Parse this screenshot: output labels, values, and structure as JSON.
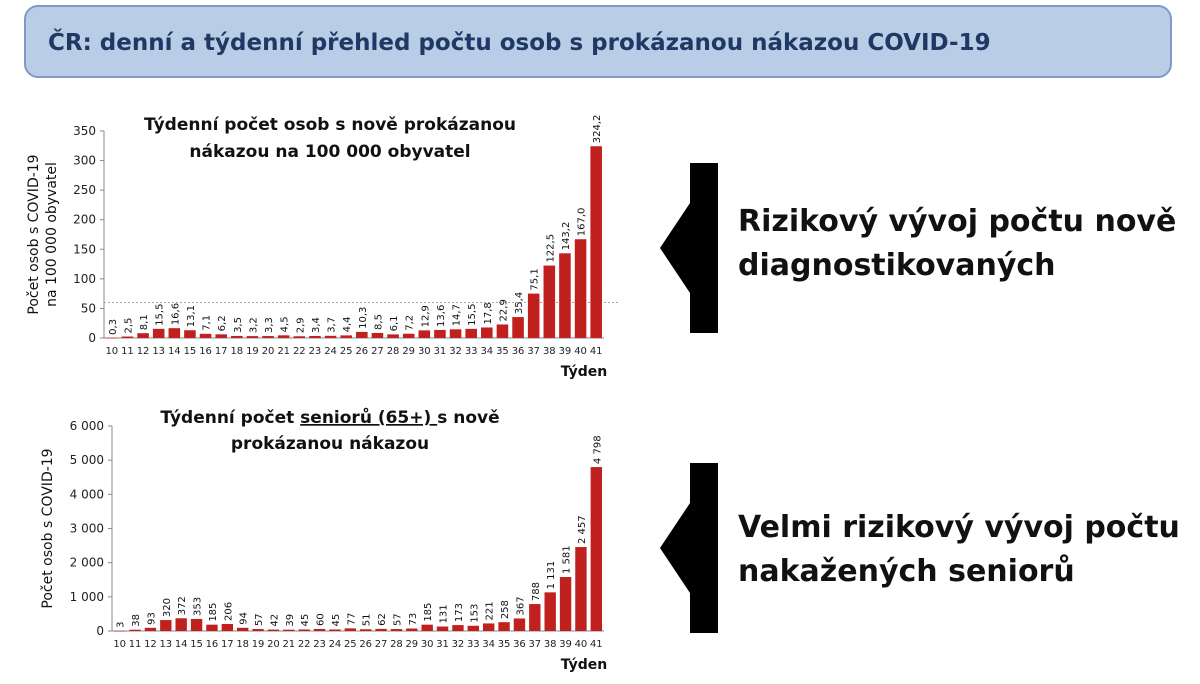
{
  "header": {
    "title": "ČR: denní a týdenní přehled počtu osob s prokázanou nákazou COVID-19"
  },
  "arrows": [
    {
      "text_lines": [
        "Rizikový vývoj počtu nově",
        "diagnostikovaných"
      ],
      "icon": "arrow-left-icon"
    },
    {
      "text_lines": [
        "Velmi rizikový vývoj počtu",
        "nakažených seniorů"
      ],
      "icon": "arrow-left-icon"
    }
  ],
  "colors": {
    "bar": "#c0201e",
    "header_bg": "#b9cde6",
    "header_text": "#1f3864",
    "reference_line": "#9aa9c7"
  },
  "chart_data": [
    {
      "type": "bar",
      "title_lines": [
        "Týdenní počet osob s nově prokázanou",
        "nákazou na 100 000 obyvatel"
      ],
      "ylabel_lines": [
        "Počet osob s COVID-19",
        "na 100 000 obyvatel"
      ],
      "xlabel": "Týden",
      "ylim": [
        0,
        350
      ],
      "yticks": [
        0,
        50,
        100,
        150,
        200,
        250,
        300,
        350
      ],
      "ytick_labels": [
        "0",
        "50",
        "100",
        "150",
        "200",
        "250",
        "300",
        "350"
      ],
      "categories": [
        "10",
        "11",
        "12",
        "13",
        "14",
        "15",
        "16",
        "17",
        "18",
        "19",
        "20",
        "21",
        "22",
        "23",
        "24",
        "25",
        "26",
        "27",
        "28",
        "29",
        "30",
        "31",
        "32",
        "33",
        "34",
        "35",
        "36",
        "37",
        "38",
        "39",
        "40",
        "41"
      ],
      "values": [
        0.3,
        2.5,
        8.1,
        15.5,
        16.6,
        13.1,
        7.1,
        6.2,
        3.5,
        3.2,
        3.3,
        4.5,
        2.9,
        3.4,
        3.7,
        4.4,
        10.3,
        8.5,
        6.1,
        7.2,
        12.9,
        13.6,
        14.7,
        15.5,
        17.8,
        22.9,
        35.4,
        75.1,
        122.5,
        143.2,
        167.0,
        324.2
      ],
      "value_labels": [
        "0,3",
        "2,5",
        "8,1",
        "15,5",
        "16,6",
        "13,1",
        "7,1",
        "6,2",
        "3,5",
        "3,2",
        "3,3",
        "4,5",
        "2,9",
        "3,4",
        "3,7",
        "4,4",
        "10,3",
        "8,5",
        "6,1",
        "7,2",
        "12,9",
        "13,6",
        "14,7",
        "15,5",
        "17,8",
        "22,9",
        "35,4",
        "75,1",
        "122,5",
        "143,2",
        "167,0",
        "324,2"
      ],
      "reference_line": 60,
      "grid": false
    },
    {
      "type": "bar",
      "title_parts": [
        "Týdenní počet ",
        "seniorů (65+) ",
        "s nově"
      ],
      "title_line2": "prokázanou nákazou",
      "ylabel_lines": [
        "Počet osob s COVID-19"
      ],
      "xlabel": "Týden",
      "ylim": [
        0,
        6000
      ],
      "yticks": [
        0,
        1000,
        2000,
        3000,
        4000,
        5000,
        6000
      ],
      "ytick_labels": [
        "0",
        "1 000",
        "2 000",
        "3 000",
        "4 000",
        "5 000",
        "6 000"
      ],
      "categories": [
        "10",
        "11",
        "12",
        "13",
        "14",
        "15",
        "16",
        "17",
        "18",
        "19",
        "20",
        "21",
        "22",
        "23",
        "24",
        "25",
        "26",
        "27",
        "28",
        "29",
        "30",
        "31",
        "32",
        "33",
        "34",
        "35",
        "36",
        "37",
        "38",
        "39",
        "40",
        "41"
      ],
      "values": [
        3,
        38,
        93,
        320,
        372,
        353,
        185,
        206,
        94,
        57,
        42,
        39,
        45,
        60,
        45,
        77,
        51,
        62,
        57,
        73,
        185,
        131,
        173,
        153,
        221,
        258,
        367,
        788,
        1131,
        1581,
        2457,
        4798
      ],
      "value_labels": [
        "3",
        "38",
        "93",
        "320",
        "372",
        "353",
        "185",
        "206",
        "94",
        "57",
        "42",
        "39",
        "45",
        "60",
        "45",
        "77",
        "51",
        "62",
        "57",
        "73",
        "185",
        "131",
        "173",
        "153",
        "221",
        "258",
        "367",
        "788",
        "1 131",
        "1 581",
        "2 457",
        "4 798"
      ],
      "grid": false
    }
  ]
}
